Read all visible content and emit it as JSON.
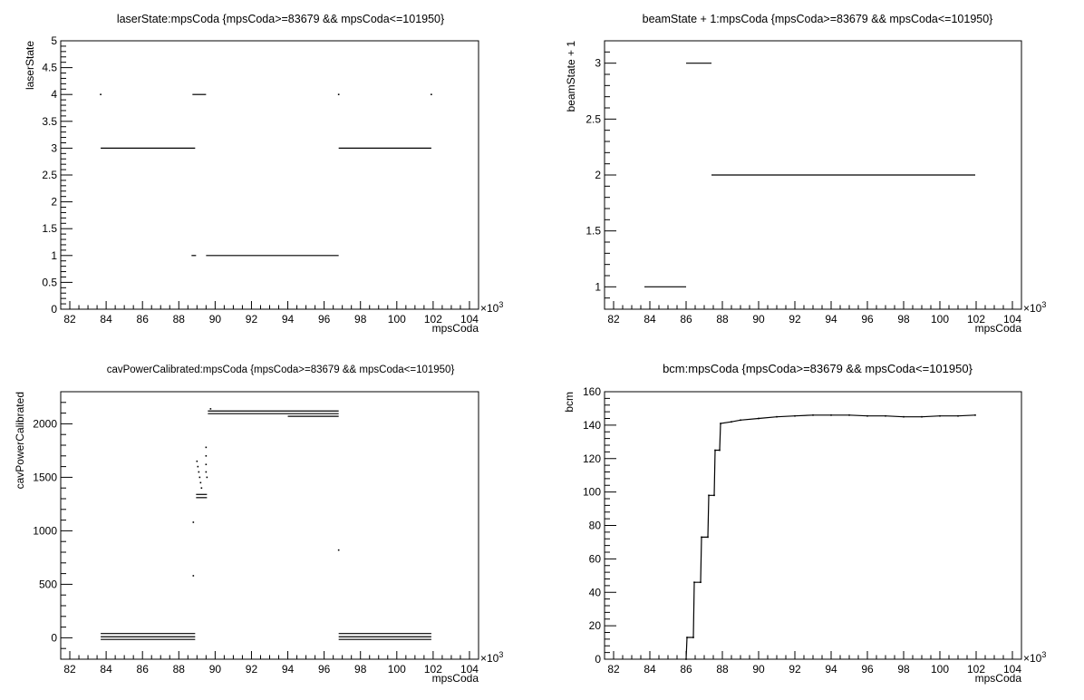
{
  "chart_data": [
    {
      "type": "scatter",
      "title": "laserState:mpsCoda {mpsCoda>=83679 && mpsCoda<=101950}",
      "xlabel": "mpsCoda",
      "ylabel": "laserState",
      "x_multiplier": "×10",
      "x_multiplier_exp": "3",
      "xlim": [
        81.5,
        104.5
      ],
      "ylim": [
        0,
        5
      ],
      "xticks": [
        82,
        84,
        86,
        88,
        90,
        92,
        94,
        96,
        98,
        100,
        102,
        104
      ],
      "yticks": [
        0,
        0.5,
        1,
        1.5,
        2,
        2.5,
        3,
        3.5,
        4,
        4.5,
        5
      ],
      "segments": [
        {
          "x": [
            83.7,
            88.9
          ],
          "y": 3
        },
        {
          "x": [
            88.75,
            89.5
          ],
          "y": 4
        },
        {
          "x": [
            88.7,
            88.95
          ],
          "y": 1
        },
        {
          "x": [
            89.5,
            96.8
          ],
          "y": 1
        },
        {
          "x": [
            96.8,
            101.9
          ],
          "y": 3
        }
      ],
      "points": [
        {
          "x": 83.7,
          "y": 4
        },
        {
          "x": 96.8,
          "y": 4
        },
        {
          "x": 101.9,
          "y": 4
        }
      ]
    },
    {
      "type": "scatter",
      "title": "beamState + 1:mpsCoda {mpsCoda>=83679 && mpsCoda<=101950}",
      "xlabel": "mpsCoda",
      "ylabel": "beamState + 1",
      "x_multiplier": "×10",
      "x_multiplier_exp": "3",
      "xlim": [
        81.5,
        104.5
      ],
      "ylim": [
        0.8,
        3.2
      ],
      "xticks": [
        82,
        84,
        86,
        88,
        90,
        92,
        94,
        96,
        98,
        100,
        102,
        104
      ],
      "yticks": [
        1,
        1.5,
        2,
        2.5,
        3
      ],
      "segments": [
        {
          "x": [
            83.7,
            86.0
          ],
          "y": 1
        },
        {
          "x": [
            86.0,
            87.4
          ],
          "y": 3
        },
        {
          "x": [
            87.4,
            101.95
          ],
          "y": 2
        }
      ],
      "points": []
    },
    {
      "type": "scatter",
      "title": "cavPowerCalibrated:mpsCoda {mpsCoda>=83679 && mpsCoda<=101950}",
      "xlabel": "mpsCoda",
      "ylabel": "cavPowerCalibrated",
      "x_multiplier": "×10",
      "x_multiplier_exp": "3",
      "xlim": [
        81.5,
        104.5
      ],
      "ylim": [
        -200,
        2300
      ],
      "xticks": [
        82,
        84,
        86,
        88,
        90,
        92,
        94,
        96,
        98,
        100,
        102,
        104
      ],
      "yticks": [
        0,
        500,
        1000,
        1500,
        2000
      ],
      "segments": [
        {
          "x": [
            83.7,
            88.9
          ],
          "y": 40
        },
        {
          "x": [
            83.7,
            88.9
          ],
          "y": 10
        },
        {
          "x": [
            83.7,
            88.9
          ],
          "y": -15
        },
        {
          "x": [
            89.6,
            96.8
          ],
          "y": 2120
        },
        {
          "x": [
            89.6,
            96.8
          ],
          "y": 2095
        },
        {
          "x": [
            94.0,
            96.8
          ],
          "y": 2070
        },
        {
          "x": [
            96.8,
            101.9
          ],
          "y": 40
        },
        {
          "x": [
            96.8,
            101.9
          ],
          "y": 10
        },
        {
          "x": [
            96.8,
            101.9
          ],
          "y": -15
        },
        {
          "x": [
            88.95,
            89.55
          ],
          "y": 1310
        },
        {
          "x": [
            88.95,
            89.55
          ],
          "y": 1340
        }
      ],
      "points": [
        {
          "x": 88.8,
          "y": 1080
        },
        {
          "x": 88.8,
          "y": 580
        },
        {
          "x": 89.0,
          "y": 1650
        },
        {
          "x": 89.05,
          "y": 1600
        },
        {
          "x": 89.1,
          "y": 1550
        },
        {
          "x": 89.15,
          "y": 1500
        },
        {
          "x": 89.2,
          "y": 1450
        },
        {
          "x": 89.25,
          "y": 1400
        },
        {
          "x": 89.5,
          "y": 1780
        },
        {
          "x": 89.5,
          "y": 1700
        },
        {
          "x": 89.5,
          "y": 1620
        },
        {
          "x": 89.5,
          "y": 1550
        },
        {
          "x": 89.55,
          "y": 1500
        },
        {
          "x": 89.75,
          "y": 2140
        },
        {
          "x": 96.8,
          "y": 820
        }
      ]
    },
    {
      "type": "line",
      "title": "bcm:mpsCoda {mpsCoda>=83679 && mpsCoda<=101950}",
      "xlabel": "mpsCoda",
      "ylabel": "bcm",
      "x_multiplier": "×10",
      "x_multiplier_exp": "3",
      "xlim": [
        81.5,
        104.5
      ],
      "ylim": [
        0,
        160
      ],
      "xticks": [
        82,
        84,
        86,
        88,
        90,
        92,
        94,
        96,
        98,
        100,
        102,
        104
      ],
      "yticks": [
        0,
        20,
        40,
        60,
        80,
        100,
        120,
        140,
        160
      ],
      "x": [
        86.0,
        86.05,
        86.4,
        86.45,
        86.8,
        86.85,
        87.2,
        87.25,
        87.55,
        87.6,
        87.85,
        87.9,
        88.5,
        89.0,
        90.0,
        91.0,
        92.0,
        93.0,
        94.0,
        95.0,
        96.0,
        97.0,
        98.0,
        99.0,
        100.0,
        101.0,
        101.95
      ],
      "y": [
        0,
        13,
        13,
        46,
        46,
        73,
        73,
        98,
        98,
        125,
        125,
        141,
        142,
        143,
        144,
        145,
        145.5,
        146,
        146,
        146,
        145.5,
        145.5,
        145,
        145,
        145.5,
        145.5,
        146
      ]
    }
  ]
}
